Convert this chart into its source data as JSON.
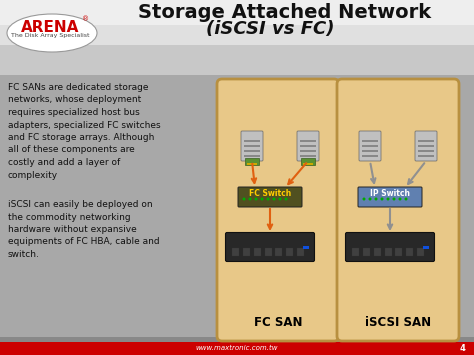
{
  "title_line1": "Storage Attached Network",
  "title_line2": "(iSCSI vs FC)",
  "footer_text": "www.maxtronic.com.tw",
  "footer_page": "4",
  "text1": "FC SANs are dedicated storage\nnetworks, whose deployment\nrequires specialized host bus\nadapters, specialized FC switches\nand FC storage arrays. Although\nall of these components are\ncostly and add a layer of\ncomplexity",
  "text2": "iSCSI can easily be deployed on\nthe commodity networking\nhardware without expansive\nequipments of FC HBA, cable and\nswitch.",
  "fc_san_label": "FC SAN",
  "iscsi_san_label": "iSCSI SAN",
  "fc_switch_label": "FC Switch",
  "ip_switch_label": "IP Switch",
  "bg_body": "#a8a8a8",
  "header_color": "#d0d0d0",
  "footer_red": "#cc0000",
  "footer_gray": "#888888",
  "panel_bg": "#e8c888",
  "panel_border": "#b89040",
  "fc_switch_bg": "#505020",
  "ip_switch_bg": "#6080b0",
  "storage_bg": "#282828",
  "server_bg": "#c0c0c0",
  "arrow_fc": "#e06010",
  "arrow_ip": "#909090",
  "text_color": "#111111",
  "title_color": "#111111",
  "arena_red": "#cc0000"
}
